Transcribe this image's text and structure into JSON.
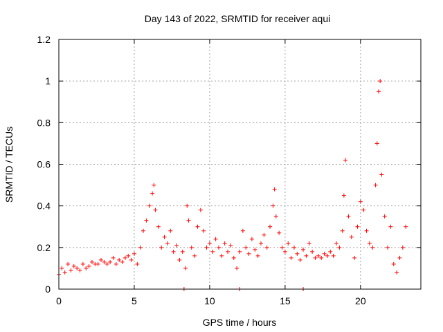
{
  "chart_data": {
    "type": "scatter",
    "title": "Day 143 of 2022, SRMTID for receiver aqui",
    "xlabel": "GPS time / hours",
    "ylabel": "SRMTID / TECUs",
    "xlim": [
      0,
      24
    ],
    "ylim": [
      0,
      1.2
    ],
    "x_ticks": [
      0,
      5,
      10,
      15,
      20
    ],
    "x_tick_labels": [
      "0",
      "5",
      "10",
      "15",
      "20"
    ],
    "y_ticks": [
      0,
      0.2,
      0.4,
      0.6,
      0.8,
      1,
      1.2
    ],
    "y_tick_labels": [
      "0",
      "0.2",
      "0.4",
      "0.6",
      "0.8",
      "1",
      "1.2"
    ],
    "grid": true,
    "marker": "plus",
    "color": "#ff0000",
    "series": [
      {
        "name": "SRMTID",
        "x": [
          0.0,
          0.2,
          0.4,
          0.6,
          0.8,
          1.0,
          1.2,
          1.4,
          1.6,
          1.8,
          2.0,
          2.2,
          2.4,
          2.6,
          2.8,
          3.0,
          3.2,
          3.4,
          3.6,
          3.8,
          4.0,
          4.2,
          4.4,
          4.6,
          4.8,
          5.0,
          5.2,
          5.4,
          5.6,
          5.8,
          6.0,
          6.2,
          6.3,
          6.4,
          6.6,
          6.8,
          7.0,
          7.2,
          7.4,
          7.6,
          7.8,
          8.0,
          8.2,
          8.4,
          8.5,
          8.6,
          8.8,
          9.0,
          9.2,
          9.4,
          9.6,
          9.8,
          10.0,
          10.2,
          10.4,
          10.6,
          10.8,
          11.0,
          11.2,
          11.4,
          11.6,
          11.8,
          12.0,
          12.2,
          12.4,
          12.6,
          12.8,
          13.0,
          13.2,
          13.4,
          13.6,
          13.8,
          14.0,
          14.2,
          14.3,
          14.4,
          14.6,
          14.8,
          15.0,
          15.2,
          15.4,
          15.6,
          15.8,
          16.0,
          16.2,
          16.4,
          16.6,
          16.8,
          17.0,
          17.2,
          17.4,
          17.6,
          17.8,
          18.0,
          18.2,
          18.4,
          18.6,
          18.8,
          18.9,
          19.0,
          19.2,
          19.4,
          19.6,
          19.8,
          20.0,
          20.2,
          20.4,
          20.6,
          20.8,
          21.0,
          21.1,
          21.2,
          21.3,
          21.4,
          21.6,
          21.8,
          22.0,
          22.2,
          22.4,
          22.6,
          22.8,
          23.0,
          8.3,
          12.0,
          16.2
        ],
        "y": [
          0.07,
          0.1,
          0.08,
          0.12,
          0.09,
          0.11,
          0.1,
          0.09,
          0.12,
          0.1,
          0.11,
          0.13,
          0.12,
          0.12,
          0.14,
          0.13,
          0.12,
          0.13,
          0.15,
          0.12,
          0.14,
          0.13,
          0.15,
          0.16,
          0.14,
          0.17,
          0.12,
          0.2,
          0.28,
          0.33,
          0.4,
          0.46,
          0.5,
          0.38,
          0.3,
          0.2,
          0.25,
          0.22,
          0.28,
          0.18,
          0.21,
          0.14,
          0.18,
          0.1,
          0.4,
          0.33,
          0.2,
          0.16,
          0.3,
          0.38,
          0.28,
          0.2,
          0.22,
          0.18,
          0.24,
          0.2,
          0.16,
          0.22,
          0.18,
          0.21,
          0.15,
          0.1,
          0.18,
          0.28,
          0.2,
          0.17,
          0.24,
          0.19,
          0.16,
          0.22,
          0.26,
          0.2,
          0.3,
          0.4,
          0.48,
          0.35,
          0.27,
          0.2,
          0.18,
          0.22,
          0.15,
          0.2,
          0.17,
          0.14,
          0.19,
          0.16,
          0.22,
          0.18,
          0.15,
          0.16,
          0.15,
          0.17,
          0.16,
          0.18,
          0.16,
          0.22,
          0.2,
          0.28,
          0.45,
          0.62,
          0.35,
          0.25,
          0.15,
          0.3,
          0.42,
          0.38,
          0.28,
          0.22,
          0.2,
          0.5,
          0.7,
          0.95,
          1.0,
          0.55,
          0.35,
          0.2,
          0.3,
          0.12,
          0.08,
          0.15,
          0.2,
          0.3,
          0.0,
          0.0,
          0.0
        ]
      }
    ]
  }
}
